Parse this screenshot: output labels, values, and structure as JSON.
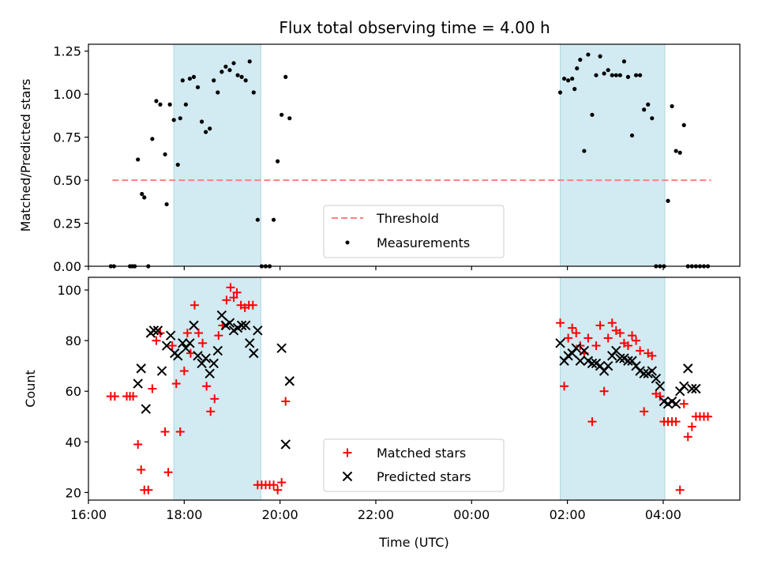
{
  "chart_data": [
    {
      "type": "scatter",
      "title": "Flux total observing time = 4.00 h",
      "xlabel": "",
      "ylabel": "Matched/Predicted stars",
      "xlim_hours": [
        16.0,
        29.6
      ],
      "ylim": [
        0,
        1.29
      ],
      "yticks": [
        "0.00",
        "0.25",
        "0.50",
        "0.75",
        "1.00",
        "1.25"
      ],
      "shaded_intervals": [
        [
          "17:47",
          "19:36"
        ],
        [
          "01:51",
          "04:02"
        ]
      ],
      "shade_color": "#add8e6",
      "threshold": {
        "name": "Threshold",
        "y": 0.5,
        "x_range": [
          "16:30",
          "05:00"
        ],
        "color": "#ff7f7f"
      },
      "legend": {
        "placement": "lower-center",
        "entries": [
          "Threshold",
          "Measurements"
        ]
      },
      "series": [
        {
          "name": "Measurements",
          "color": "#000000",
          "marker": "dot",
          "x": [
            "16:28",
            "16:32",
            "16:52",
            "16:55",
            "16:58",
            "17:02",
            "17:07",
            "17:10",
            "17:15",
            "17:20",
            "17:25",
            "17:30",
            "17:36",
            "17:38",
            "17:42",
            "17:47",
            "17:52",
            "17:55",
            "17:58",
            "18:02",
            "18:07",
            "18:12",
            "18:17",
            "18:22",
            "18:27",
            "18:32",
            "18:37",
            "18:42",
            "18:47",
            "18:52",
            "18:57",
            "19:02",
            "19:07",
            "19:12",
            "19:17",
            "19:22",
            "19:27",
            "19:32",
            "19:37",
            "19:42",
            "19:47",
            "19:52",
            "19:57",
            "20:02",
            "20:07",
            "20:12",
            "01:51",
            "01:56",
            "02:01",
            "02:06",
            "02:09",
            "02:12",
            "02:16",
            "02:21",
            "02:26",
            "02:31",
            "02:36",
            "02:41",
            "02:46",
            "02:51",
            "02:56",
            "03:01",
            "03:06",
            "03:11",
            "03:16",
            "03:21",
            "03:26",
            "03:31",
            "03:36",
            "03:41",
            "03:46",
            "03:51",
            "03:56",
            "04:01",
            "04:06",
            "04:11",
            "04:16",
            "04:21",
            "04:26",
            "04:31",
            "04:36",
            "04:41",
            "04:46",
            "04:51",
            "04:56"
          ],
          "y": [
            0.0,
            0.0,
            0.0,
            0.0,
            0.0,
            0.62,
            0.42,
            0.4,
            0.0,
            0.74,
            0.96,
            0.94,
            0.65,
            0.36,
            0.94,
            0.85,
            0.59,
            0.86,
            1.08,
            0.94,
            1.09,
            1.1,
            1.04,
            0.84,
            0.78,
            0.8,
            1.08,
            1.01,
            1.13,
            1.16,
            1.14,
            1.18,
            1.11,
            1.1,
            1.08,
            1.19,
            1.01,
            0.27,
            0.0,
            0.0,
            0.0,
            0.27,
            0.61,
            0.88,
            1.1,
            0.86,
            1.01,
            1.09,
            1.08,
            1.09,
            1.03,
            1.15,
            1.2,
            0.67,
            1.23,
            0.88,
            1.11,
            1.22,
            1.12,
            1.14,
            1.11,
            1.11,
            1.11,
            1.19,
            1.1,
            0.76,
            1.11,
            1.11,
            0.91,
            0.94,
            0.86,
            0.0,
            0.0,
            0.0,
            0.38,
            0.93,
            0.67,
            0.66,
            0.82,
            0.0,
            0.0,
            0.0,
            0.0,
            0.0,
            0.0
          ]
        }
      ]
    },
    {
      "type": "scatter",
      "title": "",
      "xlabel": "Time (UTC)",
      "ylabel": "Count",
      "xlim_hours": [
        16.0,
        29.6
      ],
      "ylim": [
        17,
        105
      ],
      "xticks": [
        "16:00",
        "18:00",
        "20:00",
        "22:00",
        "00:00",
        "02:00",
        "04:00"
      ],
      "yticks": [
        "20",
        "40",
        "60",
        "80",
        "100"
      ],
      "shaded_intervals": [
        [
          "17:47",
          "19:36"
        ],
        [
          "01:51",
          "04:02"
        ]
      ],
      "legend": {
        "placement": "lower-center",
        "entries": [
          "Matched stars",
          "Predicted stars"
        ]
      },
      "series": [
        {
          "name": "Matched stars",
          "color": "#ff0000",
          "marker": "plus",
          "x": [
            "16:28",
            "16:33",
            "16:48",
            "16:52",
            "16:56",
            "17:02",
            "17:06",
            "17:10",
            "17:15",
            "17:20",
            "17:25",
            "17:30",
            "17:36",
            "17:40",
            "17:45",
            "17:50",
            "17:55",
            "18:00",
            "18:04",
            "18:08",
            "18:13",
            "18:18",
            "18:23",
            "18:28",
            "18:33",
            "18:38",
            "18:43",
            "18:48",
            "18:53",
            "18:58",
            "19:02",
            "19:06",
            "19:11",
            "19:16",
            "19:21",
            "19:26",
            "19:32",
            "19:37",
            "19:42",
            "19:47",
            "19:52",
            "19:57",
            "20:02",
            "20:07",
            "01:51",
            "01:56",
            "02:01",
            "02:06",
            "02:11",
            "02:16",
            "02:21",
            "02:26",
            "02:31",
            "02:36",
            "02:41",
            "02:46",
            "02:51",
            "02:56",
            "03:01",
            "03:06",
            "03:11",
            "03:16",
            "03:21",
            "03:26",
            "03:31",
            "03:36",
            "03:41",
            "03:46",
            "03:51",
            "03:56",
            "04:01",
            "04:06",
            "04:11",
            "04:16",
            "04:21",
            "04:26",
            "04:31",
            "04:36",
            "04:41",
            "04:46",
            "04:51",
            "04:56"
          ],
          "y": [
            58,
            58,
            58,
            58,
            58,
            39,
            29,
            21,
            21,
            61,
            80,
            83,
            44,
            28,
            78,
            63,
            44,
            68,
            83,
            75,
            94,
            83,
            79,
            62,
            52,
            57,
            82,
            86,
            96,
            101,
            97,
            99,
            94,
            93,
            94,
            94,
            23,
            23,
            23,
            23,
            23,
            21,
            24,
            56,
            87,
            62,
            81,
            85,
            83,
            78,
            75,
            81,
            48,
            78,
            86,
            60,
            81,
            87,
            84,
            83,
            79,
            78,
            82,
            80,
            76,
            52,
            75,
            74,
            59,
            58,
            48,
            48,
            48,
            48,
            21,
            55,
            42,
            46,
            50,
            50,
            50,
            50
          ]
        },
        {
          "name": "Predicted stars",
          "color": "#000000",
          "marker": "x",
          "x": [
            "17:02",
            "17:06",
            "17:12",
            "17:18",
            "17:22",
            "17:27",
            "17:32",
            "17:38",
            "17:43",
            "17:48",
            "17:52",
            "17:58",
            "18:02",
            "18:07",
            "18:12",
            "18:17",
            "18:22",
            "18:27",
            "18:32",
            "18:37",
            "18:42",
            "18:47",
            "18:52",
            "18:57",
            "19:02",
            "19:07",
            "19:12",
            "19:17",
            "19:22",
            "19:27",
            "19:32",
            "20:02",
            "20:07",
            "20:12",
            "01:51",
            "01:56",
            "02:01",
            "02:06",
            "02:11",
            "02:16",
            "02:21",
            "02:26",
            "02:31",
            "02:36",
            "02:41",
            "02:46",
            "02:51",
            "02:56",
            "03:01",
            "03:06",
            "03:11",
            "03:16",
            "03:21",
            "03:26",
            "03:31",
            "03:36",
            "03:41",
            "03:46",
            "03:51",
            "03:56",
            "04:01",
            "04:06",
            "04:11",
            "04:16",
            "04:21",
            "04:26",
            "04:31",
            "04:36",
            "04:41"
          ],
          "y": [
            63,
            69,
            53,
            83,
            84,
            84,
            68,
            78,
            82,
            75,
            74,
            79,
            77,
            79,
            86,
            74,
            71,
            73,
            67,
            71,
            76,
            90,
            86,
            87,
            84,
            85,
            86,
            86,
            79,
            75,
            84,
            77,
            39,
            64,
            79,
            72,
            74,
            75,
            77,
            72,
            76,
            72,
            71,
            71,
            70,
            68,
            70,
            74,
            76,
            73,
            73,
            72,
            72,
            70,
            68,
            67,
            67,
            68,
            65,
            62,
            56,
            55,
            56,
            55,
            60,
            62,
            69,
            61,
            61
          ]
        }
      ]
    }
  ]
}
